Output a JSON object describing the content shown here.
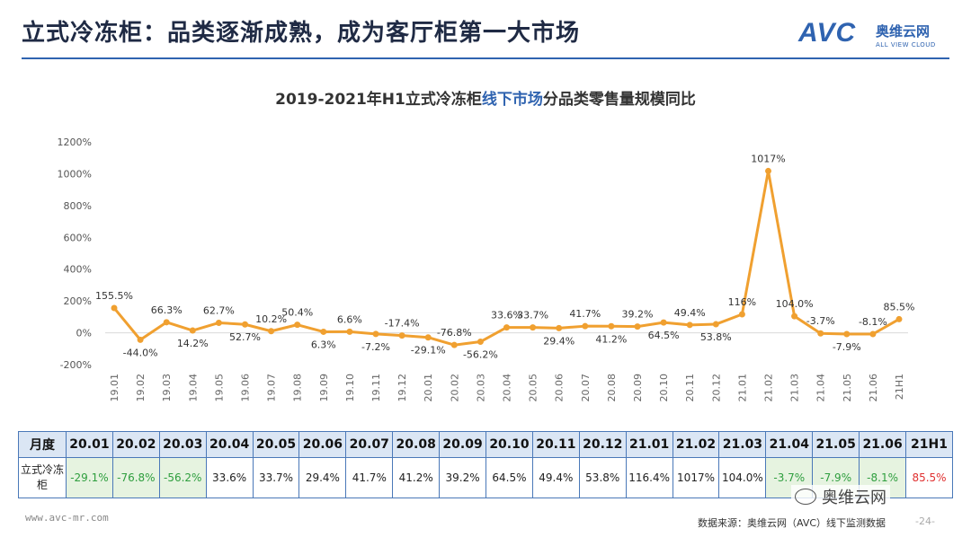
{
  "header": {
    "title": "立式冷冻柜：品类逐渐成熟，成为客厅柜第一大市场",
    "logo_main": "AVC",
    "logo_cn": "奥维云网",
    "logo_en": "ALL VIEW CLOUD"
  },
  "chart_title": {
    "prefix": "2019-2021年H1立式冷冻柜",
    "highlight": "线下市场",
    "suffix": "分品类零售量规模同比"
  },
  "chart_data": {
    "type": "line",
    "title": "2019-2021年H1立式冷冻柜线下市场分品类零售量规模同比",
    "ylim": [
      -200,
      1200
    ],
    "yticks": [
      -200,
      0,
      200,
      400,
      600,
      800,
      1000,
      1200
    ],
    "ytick_labels": [
      "-200%",
      "0%",
      "200%",
      "400%",
      "600%",
      "800%",
      "1000%",
      "1200%"
    ],
    "categories": [
      "19.01",
      "19.02",
      "19.03",
      "19.04",
      "19.05",
      "19.06",
      "19.07",
      "19.08",
      "19.09",
      "19.10",
      "19.11",
      "19.12",
      "20.01",
      "20.02",
      "20.03",
      "20.04",
      "20.05",
      "20.06",
      "20.07",
      "20.08",
      "20.09",
      "20.10",
      "20.11",
      "20.12",
      "21.01",
      "21.02",
      "21.03",
      "21.04",
      "21.05",
      "21.06",
      "21H1"
    ],
    "values": [
      155.5,
      -44.0,
      66.3,
      14.2,
      62.7,
      52.7,
      10.2,
      50.4,
      6.3,
      6.6,
      -7.2,
      -17.4,
      -29.1,
      -76.8,
      -56.2,
      33.6,
      33.7,
      29.4,
      41.7,
      41.2,
      39.2,
      64.5,
      49.4,
      53.8,
      116,
      1017,
      104.0,
      -3.7,
      -7.9,
      -8.1,
      85.5
    ],
    "labels": [
      "155.5%",
      "-44.0%",
      "66.3%",
      "14.2%",
      "62.7%",
      "52.7%",
      "10.2%",
      "50.4%",
      "6.3%",
      "6.6%",
      "-7.2%",
      "-17.4%",
      "-29.1%",
      "-76.8%",
      "-56.2%",
      "33.6%",
      "33.7%",
      "29.4%",
      "41.7%",
      "41.2%",
      "39.2%",
      "64.5%",
      "49.4%",
      "53.8%",
      "116%",
      "1017%",
      "104.0%",
      "-3.7%",
      "-7.9%",
      "-8.1%",
      "85.5%"
    ],
    "label_pos": [
      "a",
      "b",
      "a",
      "b",
      "a",
      "b",
      "a",
      "a",
      "b",
      "a",
      "b",
      "a",
      "b",
      "a",
      "b",
      "a",
      "a",
      "b",
      "a",
      "b",
      "a",
      "b",
      "a",
      "b",
      "a",
      "a",
      "a",
      "a",
      "b",
      "a",
      "a"
    ],
    "series_color": "#f0a030"
  },
  "table": {
    "header_label": "月度",
    "row_label": "立式冷冻柜",
    "columns": [
      "20.01",
      "20.02",
      "20.03",
      "20.04",
      "20.05",
      "20.06",
      "20.07",
      "20.08",
      "20.09",
      "20.10",
      "20.11",
      "20.12",
      "21.01",
      "21.02",
      "21.03",
      "21.04",
      "21.05",
      "21.06",
      "21H1"
    ],
    "values": [
      "-29.1%",
      "-76.8%",
      "-56.2%",
      "33.6%",
      "33.7%",
      "29.4%",
      "41.7%",
      "41.2%",
      "39.2%",
      "64.5%",
      "49.4%",
      "53.8%",
      "116.4%",
      "1017%",
      "104.0%",
      "-3.7%",
      "-7.9%",
      "-8.1%",
      "85.5%"
    ]
  },
  "footer": {
    "url": "www.avc-mr.com",
    "source": "数据来源：奥维云网（AVC）线下监测数据",
    "page": "-24-",
    "wechat": "奥维云网"
  }
}
